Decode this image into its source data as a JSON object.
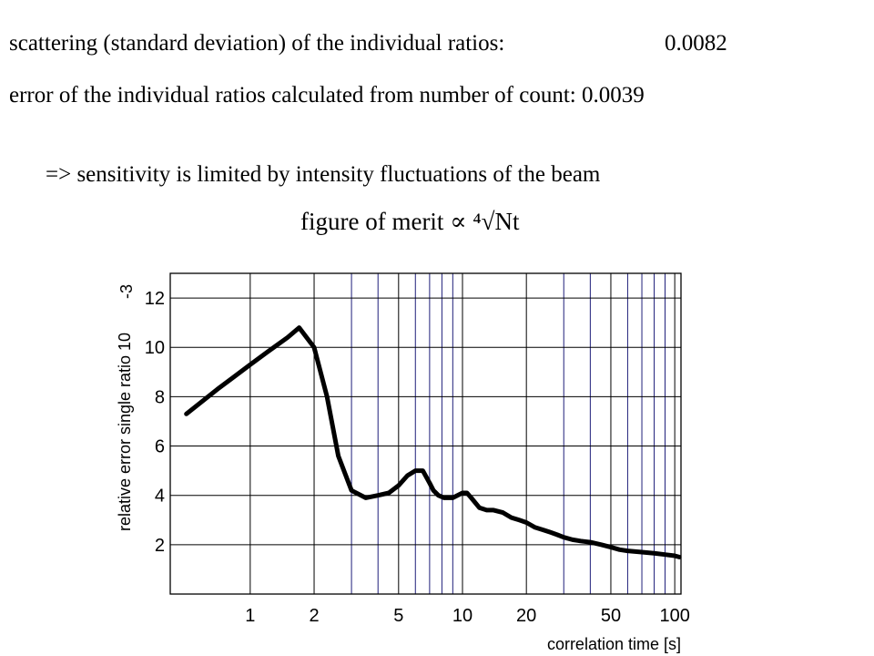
{
  "text": {
    "line1": "scattering (standard deviation) of the individual ratios:",
    "line1_value": "0.0082",
    "line2": "error of the individual ratios calculated from number of count: 0.0039",
    "line3": "=>  sensitivity is limited by intensity fluctuations of the beam",
    "line4": "figure of merit ∝ ⁴√Nt"
  },
  "colors": {
    "line": "#000000",
    "frame": "#000000",
    "grid_major": "#000000",
    "grid_minor": "#1f1f7a"
  },
  "chart_data": {
    "type": "line",
    "xscale": "log",
    "xlabel": "correlation time [s]",
    "ylabel": "relative error single ratio 10",
    "ylabel_exp": "-3",
    "xlim": [
      0.42,
      107
    ],
    "ylim": [
      0,
      13
    ],
    "xticks": [
      {
        "v": 1,
        "label": "1"
      },
      {
        "v": 2,
        "label": "2"
      },
      {
        "v": 5,
        "label": "5"
      },
      {
        "v": 10,
        "label": "10"
      },
      {
        "v": 20,
        "label": "20"
      },
      {
        "v": 50,
        "label": "50"
      },
      {
        "v": 100,
        "label": "100"
      }
    ],
    "yticks": [
      {
        "v": 2,
        "label": "2"
      },
      {
        "v": 4,
        "label": "4"
      },
      {
        "v": 6,
        "label": "6"
      },
      {
        "v": 8,
        "label": "8"
      },
      {
        "v": 10,
        "label": "10"
      },
      {
        "v": 12,
        "label": "12"
      }
    ],
    "gridx": [
      3,
      4,
      6,
      7,
      8,
      9,
      30,
      40,
      60,
      70,
      80,
      90
    ],
    "series": [
      {
        "x": [
          0.5,
          0.7,
          1,
          1.2,
          1.5,
          1.7,
          2,
          2.3,
          2.6,
          3,
          3.5,
          4,
          4.5,
          5,
          5.5,
          6,
          6.5,
          7,
          7.3,
          7.7,
          8.2,
          9,
          10,
          10.5,
          11,
          12,
          13,
          14,
          15.5,
          17,
          18.5,
          20,
          22,
          24,
          26,
          28,
          30,
          33,
          36,
          40,
          45,
          50,
          55,
          60,
          70,
          80,
          90,
          100,
          105
        ],
        "y": [
          7.3,
          8.3,
          9.3,
          9.8,
          10.4,
          10.8,
          10.0,
          8.0,
          5.6,
          4.2,
          3.9,
          4.0,
          4.1,
          4.4,
          4.8,
          5.0,
          5.0,
          4.5,
          4.2,
          4.0,
          3.9,
          3.9,
          4.1,
          4.1,
          3.9,
          3.5,
          3.4,
          3.4,
          3.3,
          3.1,
          3.0,
          2.9,
          2.7,
          2.6,
          2.5,
          2.4,
          2.3,
          2.2,
          2.15,
          2.1,
          2.0,
          1.9,
          1.8,
          1.75,
          1.7,
          1.65,
          1.6,
          1.55,
          1.5
        ]
      }
    ]
  }
}
